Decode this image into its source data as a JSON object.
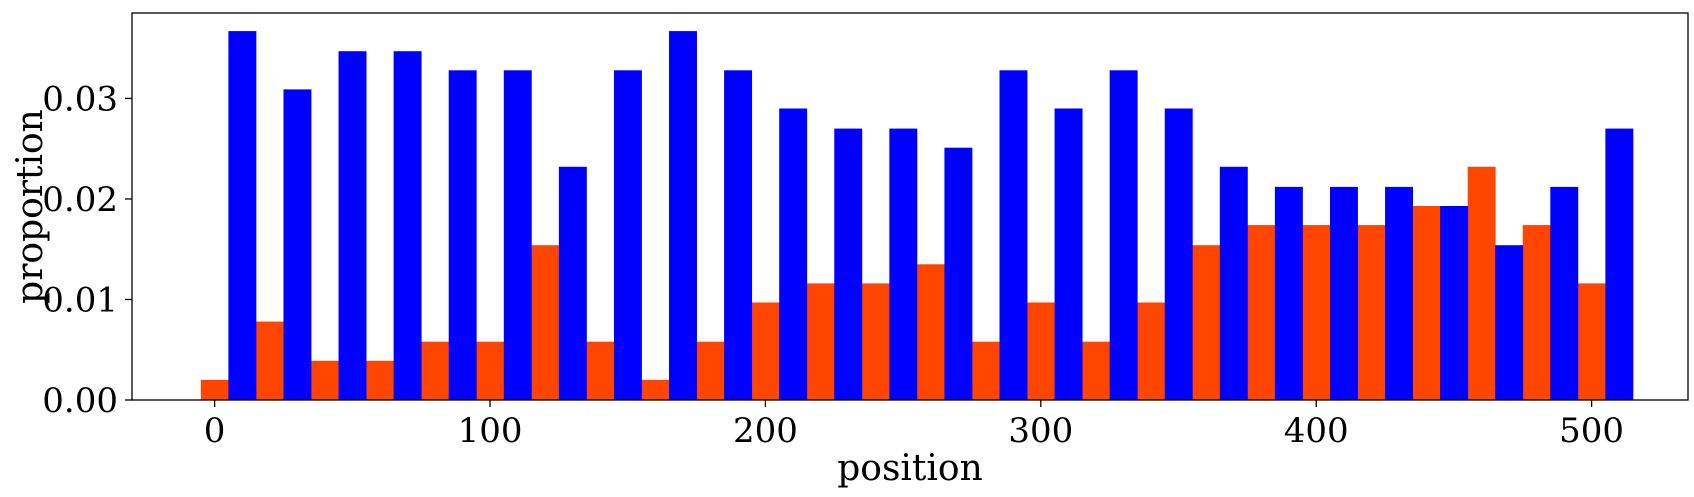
{
  "chart_data": {
    "type": "bar",
    "xlabel": "position",
    "ylabel": "proportion",
    "xlim": [
      -30,
      535
    ],
    "ylim": [
      0,
      0.0385
    ],
    "x_ticks": [
      0,
      100,
      200,
      300,
      400,
      500
    ],
    "x_tick_labels": [
      "0",
      "100",
      "200",
      "300",
      "400",
      "500"
    ],
    "y_ticks": [
      0.0,
      0.01,
      0.02,
      0.03
    ],
    "y_tick_labels": [
      "0.00",
      "0.01",
      "0.02",
      "0.03"
    ],
    "bin_edges": [
      -5,
      15,
      35,
      55,
      75,
      95,
      115,
      135,
      155,
      175,
      195,
      215,
      235,
      255,
      275,
      295,
      315,
      335,
      355,
      375,
      395,
      415,
      435,
      455,
      475,
      495,
      515
    ],
    "grid": false,
    "legend": null,
    "series": [
      {
        "color": "#ff4500",
        "values": [
          0.002,
          0.0078,
          0.0039,
          0.0039,
          0.0058,
          0.0058,
          0.0154,
          0.0058,
          0.002,
          0.0058,
          0.0097,
          0.0116,
          0.0116,
          0.0135,
          0.0058,
          0.0097,
          0.0058,
          0.0097,
          0.0154,
          0.0174,
          0.0174,
          0.0174,
          0.0193,
          0.0232,
          0.0174,
          0.0116
        ]
      },
      {
        "color": "#0000ff",
        "values": [
          0.0367,
          0.0309,
          0.0347,
          0.0347,
          0.0328,
          0.0328,
          0.0232,
          0.0328,
          0.0367,
          0.0328,
          0.029,
          0.027,
          0.027,
          0.0251,
          0.0328,
          0.029,
          0.0328,
          0.029,
          0.0232,
          0.0212,
          0.0212,
          0.0212,
          0.0193,
          0.0154,
          0.0212,
          0.027
        ]
      }
    ]
  }
}
